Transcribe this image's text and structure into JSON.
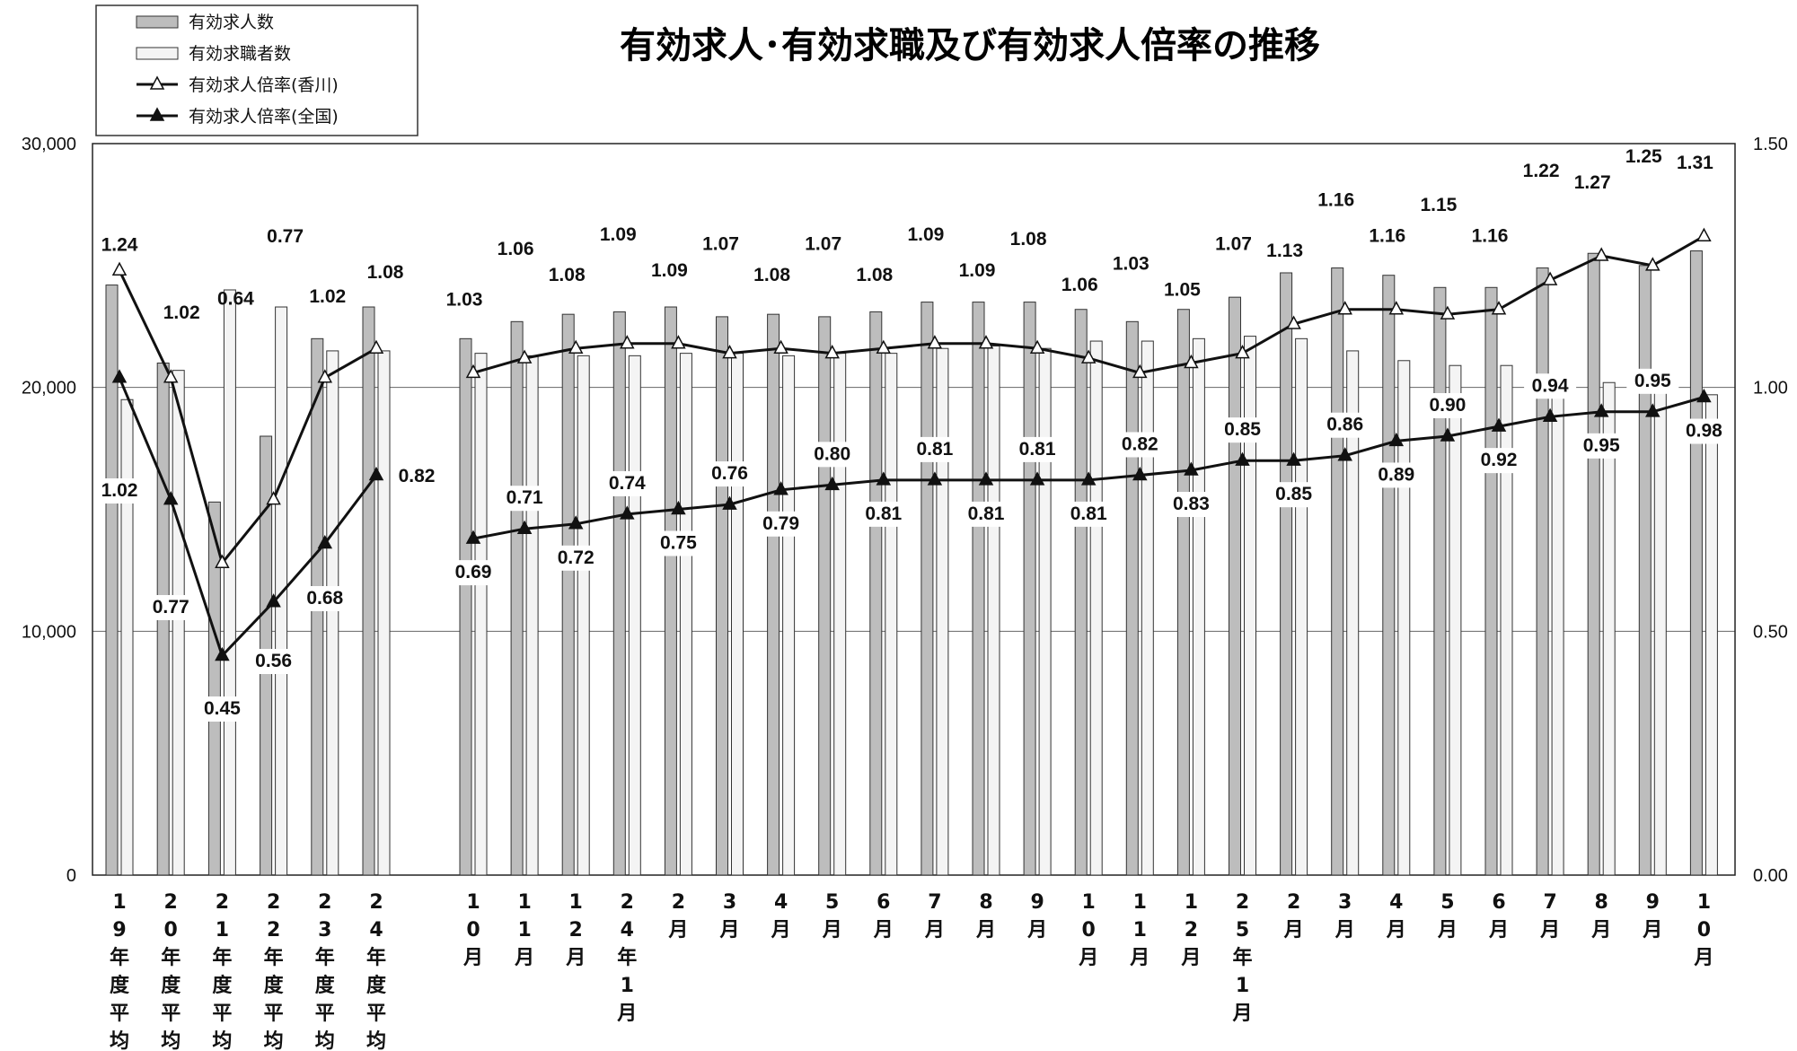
{
  "title": "有効求人･有効求職及び有効求人倍率の推移",
  "legend": [
    {
      "label": "有効求人数",
      "kind": "bar-dark"
    },
    {
      "label": "有効求職者数",
      "kind": "bar-light"
    },
    {
      "label": "有効求人倍率(香川)",
      "kind": "line-open"
    },
    {
      "label": "有効求人倍率(全国)",
      "kind": "line-filled"
    }
  ],
  "colors": {
    "bar_dark": "#bdbdbd",
    "bar_light": "#f4f4f4",
    "line": "#111111",
    "grid": "#666666"
  },
  "chart_data": {
    "type": "bar",
    "categories": [
      "19年度平均",
      "20年度平均",
      "21年度平均",
      "22年度平均",
      "23年度平均",
      "24年度平均",
      "10月",
      "11月",
      "12月",
      "24年1月",
      "2月",
      "3月",
      "4月",
      "5月",
      "6月",
      "7月",
      "8月",
      "9月",
      "10月",
      "11月",
      "12月",
      "25年1月",
      "2月",
      "3月",
      "4月",
      "5月",
      "6月",
      "7月",
      "8月",
      "9月",
      "10月"
    ],
    "y_left": {
      "min": 0,
      "max": 30000,
      "ticks": [
        "0",
        "10,000",
        "20,000",
        "30,000"
      ]
    },
    "y_right": {
      "min": 0,
      "max": 1.5,
      "ticks": [
        "0.00",
        "0.50",
        "1.00",
        "1.50"
      ]
    },
    "series": [
      {
        "name": "有効求人数",
        "axis": "left",
        "type": "bar",
        "values": [
          24200,
          21000,
          15300,
          18000,
          22000,
          23300,
          22000,
          22700,
          23000,
          23100,
          23300,
          22900,
          23000,
          22900,
          23100,
          23500,
          23500,
          23500,
          23200,
          22700,
          23200,
          23700,
          24700,
          24900,
          24600,
          24100,
          24100,
          24900,
          25500,
          25000,
          25600
        ]
      },
      {
        "name": "有効求職者数",
        "axis": "left",
        "type": "bar",
        "values": [
          19500,
          20700,
          24000,
          23300,
          21500,
          21500,
          21400,
          21300,
          21300,
          21300,
          21400,
          21400,
          21300,
          21400,
          21400,
          21600,
          21700,
          21600,
          21900,
          21900,
          22000,
          22100,
          22000,
          21500,
          21100,
          20900,
          20900,
          20500,
          20200,
          20000,
          19700
        ]
      },
      {
        "name": "有効求人倍率(香川)",
        "axis": "right",
        "type": "line",
        "marker": "open-triangle",
        "values": [
          1.24,
          1.02,
          0.64,
          0.77,
          1.02,
          1.08,
          1.03,
          1.06,
          1.08,
          1.09,
          1.09,
          1.07,
          1.08,
          1.07,
          1.08,
          1.09,
          1.09,
          1.08,
          1.06,
          1.03,
          1.05,
          1.07,
          1.13,
          1.16,
          1.16,
          1.15,
          1.16,
          1.22,
          1.27,
          1.25,
          1.31
        ]
      },
      {
        "name": "有効求人倍率(全国)",
        "axis": "right",
        "type": "line",
        "marker": "filled-triangle",
        "values": [
          1.02,
          0.77,
          0.45,
          0.56,
          0.68,
          0.82,
          0.69,
          0.71,
          0.72,
          0.74,
          0.75,
          0.76,
          0.79,
          0.8,
          0.81,
          0.81,
          0.81,
          0.81,
          0.81,
          0.82,
          0.83,
          0.85,
          0.85,
          0.86,
          0.89,
          0.9,
          0.92,
          0.94,
          0.95,
          0.95,
          0.98
        ]
      }
    ],
    "kagawa_labels": [
      "1.24",
      "1.02",
      "0.64",
      "0.77",
      "1.02",
      "1.08",
      "1.03",
      "1.06",
      "1.08",
      "1.09",
      "1.09",
      "1.07",
      "1.08",
      "1.07",
      "1.08",
      "1.09",
      "1.09",
      "1.08",
      "1.06",
      "1.03",
      "1.05",
      "1.07",
      "1.13",
      "1.16",
      "1.16",
      "1.15",
      "1.16",
      "1.22",
      "1.27",
      "1.25",
      "1.31"
    ],
    "national_labels": [
      "1.02",
      "0.77",
      "0.45",
      "0.56",
      "0.68",
      "0.82",
      "0.69",
      "0.71",
      "0.72",
      "0.74",
      "0.75",
      "0.76",
      "0.79",
      "0.80",
      "0.81",
      "0.81",
      "0.81",
      "0.81",
      "0.81",
      "0.82",
      "0.83",
      "0.85",
      "0.85",
      "0.86",
      "0.89",
      "0.90",
      "0.92",
      "0.94",
      "0.95",
      "0.95",
      "0.98"
    ],
    "grid": true,
    "legend_position": "top-left"
  }
}
